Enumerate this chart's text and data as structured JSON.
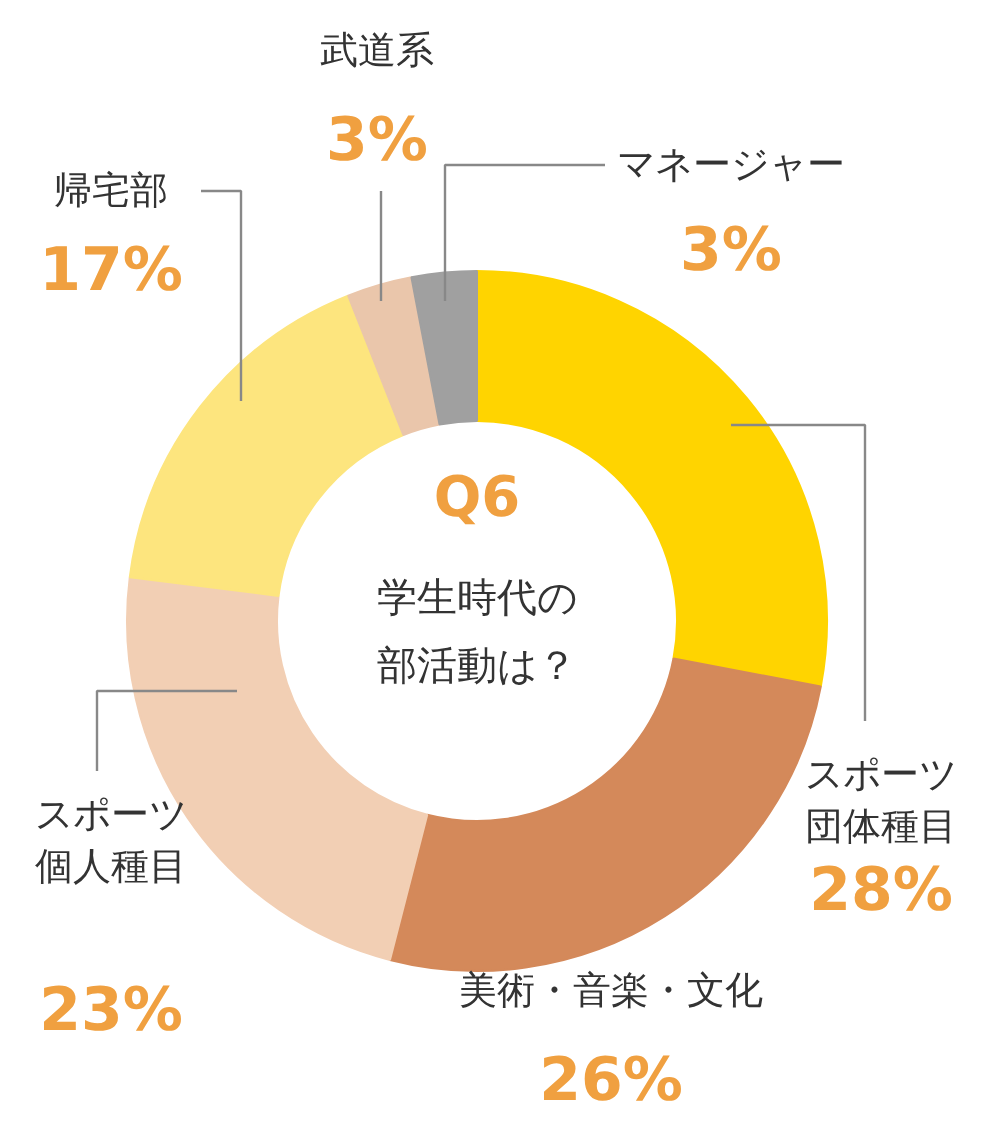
{
  "chart_data": {
    "type": "donut",
    "title": "Q6",
    "subtitle": "学生時代の部活動は？",
    "categories": [
      "スポーツ団体種目",
      "美術・音楽・文化",
      "スポーツ個人種目",
      "帰宅部",
      "武道系",
      "マネージャー"
    ],
    "values": [
      28,
      26,
      23,
      17,
      3,
      3
    ],
    "colors": [
      "#ffd400",
      "#d4895a",
      "#f2cfb4",
      "#fde57e",
      "#eac6ab",
      "#a0a0a0"
    ],
    "value_labels": [
      "28%",
      "26%",
      "23%",
      "17%",
      "3%",
      "3%"
    ]
  }
}
